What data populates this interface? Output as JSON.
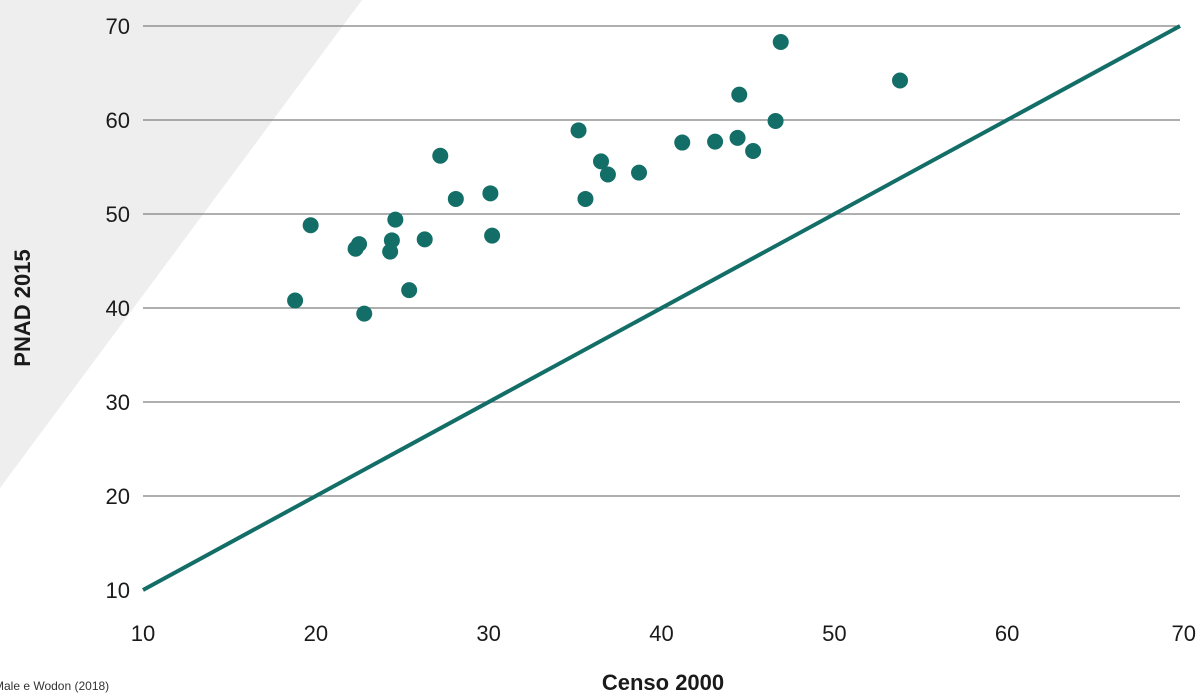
{
  "chart_data": {
    "type": "scatter",
    "xlabel": "Censo 2000",
    "ylabel": "PNAD 2015",
    "xlim": [
      10,
      70
    ],
    "ylim": [
      10,
      70
    ],
    "x_ticks": [
      "10",
      "20",
      "30",
      "40",
      "50",
      "60",
      "70"
    ],
    "y_ticks": [
      "10",
      "20",
      "30",
      "40",
      "50",
      "60",
      "70"
    ],
    "grid": "horizontal",
    "reference_line": {
      "from": [
        10,
        10
      ],
      "to": [
        70,
        70
      ]
    },
    "source": "Male e Wodon (2018)",
    "colors": {
      "points": "#136e68",
      "line": "#136e68",
      "grid": "#7f7f7f",
      "background_band": "#eeeeee"
    },
    "points": [
      {
        "x": 18.8,
        "y": 40.8
      },
      {
        "x": 19.7,
        "y": 48.8
      },
      {
        "x": 22.3,
        "y": 46.3
      },
      {
        "x": 22.5,
        "y": 46.8
      },
      {
        "x": 22.8,
        "y": 39.4
      },
      {
        "x": 24.3,
        "y": 46.0
      },
      {
        "x": 24.4,
        "y": 47.2
      },
      {
        "x": 24.6,
        "y": 49.4
      },
      {
        "x": 25.4,
        "y": 41.9
      },
      {
        "x": 26.3,
        "y": 47.3
      },
      {
        "x": 27.2,
        "y": 56.2
      },
      {
        "x": 28.1,
        "y": 51.6
      },
      {
        "x": 30.1,
        "y": 52.2
      },
      {
        "x": 30.2,
        "y": 47.7
      },
      {
        "x": 35.2,
        "y": 58.9
      },
      {
        "x": 35.6,
        "y": 51.6
      },
      {
        "x": 36.5,
        "y": 55.6
      },
      {
        "x": 36.9,
        "y": 54.2
      },
      {
        "x": 38.7,
        "y": 54.4
      },
      {
        "x": 41.2,
        "y": 57.6
      },
      {
        "x": 43.1,
        "y": 57.7
      },
      {
        "x": 44.4,
        "y": 58.1
      },
      {
        "x": 44.5,
        "y": 62.7
      },
      {
        "x": 45.3,
        "y": 56.7
      },
      {
        "x": 46.6,
        "y": 59.9
      },
      {
        "x": 46.9,
        "y": 68.3
      },
      {
        "x": 53.8,
        "y": 64.2
      }
    ]
  }
}
